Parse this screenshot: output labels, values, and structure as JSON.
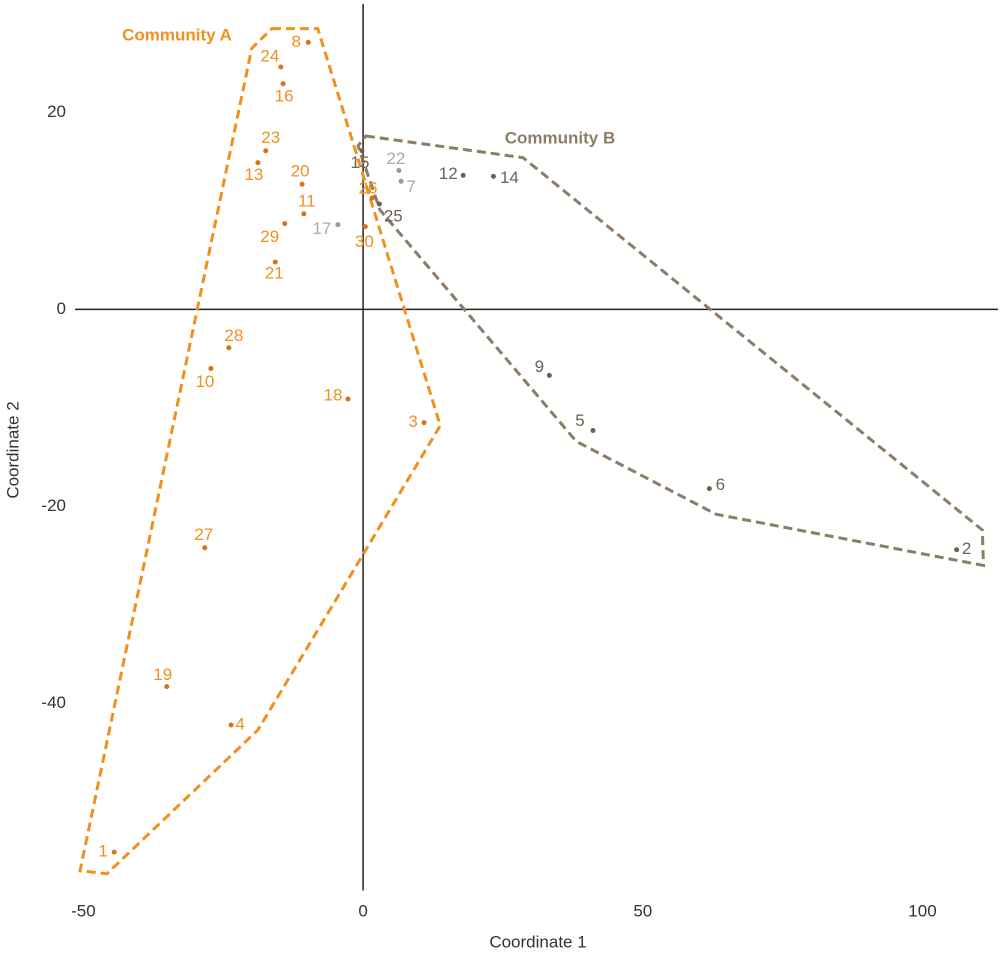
{
  "chart_data": {
    "type": "scatter",
    "x_label": "Coordinate 1",
    "y_label": "Coordinate 2",
    "xlim": [
      -51.5,
      113.5
    ],
    "ylim": [
      -59,
      31
    ],
    "xticks": [
      -50,
      0,
      50,
      100
    ],
    "yticks": [
      20,
      0,
      -20,
      -40
    ],
    "grid": false,
    "series": [
      {
        "name": "Community A",
        "color": "#f0901e",
        "labels": [
          "8",
          "24",
          "16",
          "23",
          "13",
          "20",
          "11",
          "29",
          "21",
          "30",
          "26",
          "28",
          "10",
          "18",
          "3",
          "27",
          "19",
          "4",
          "1"
        ],
        "x": [
          -9.8,
          -14.7,
          -14.3,
          -17.4,
          -18.8,
          -10.9,
          -10.6,
          -14.0,
          -15.7,
          0.4,
          1.6,
          -24.0,
          -27.2,
          -2.7,
          10.9,
          -28.3,
          -35.1,
          -23.6,
          -44.5
        ],
        "y": [
          27.1,
          24.6,
          22.9,
          16.1,
          14.9,
          12.7,
          9.7,
          8.7,
          4.8,
          8.4,
          11.3,
          -3.9,
          -6.0,
          -9.1,
          -11.5,
          -24.2,
          -38.3,
          -42.2,
          -55.1
        ],
        "hull_x": [
          -16.3,
          -8.1,
          13.8,
          -18.8,
          -45.8,
          -50.6,
          -19.9
        ],
        "hull_y": [
          28.5,
          28.5,
          -11.8,
          -42.7,
          -57.3,
          -57.0,
          26.5
        ]
      },
      {
        "name": "Community B",
        "color": "#8b7d67",
        "labels": [
          "15",
          "25",
          "12",
          "14",
          "9",
          "5",
          "6",
          "2"
        ],
        "x": [
          -0.2,
          2.9,
          17.9,
          23.3,
          33.3,
          41.1,
          61.9,
          106.1
        ],
        "y": [
          16.1,
          10.7,
          13.6,
          13.5,
          -6.7,
          -12.3,
          -18.2,
          -24.4
        ],
        "hull_x": [
          0.5,
          28.6,
          110.7,
          110.9,
          63.1,
          38.1,
          3.0,
          -0.9
        ],
        "hull_y": [
          17.6,
          15.4,
          -22.4,
          -26.0,
          -20.8,
          -13.4,
          10.1,
          16.6
        ]
      },
      {
        "color": "#aaaaaa",
        "labels": [
          "17",
          "22",
          "7"
        ],
        "x": [
          -4.5,
          6.4,
          6.8
        ],
        "y": [
          8.6,
          14.1,
          13.0
        ]
      }
    ]
  }
}
